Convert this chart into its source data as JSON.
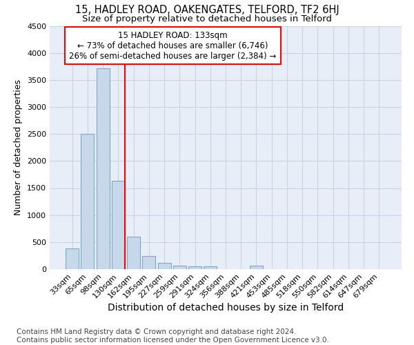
{
  "title": "15, HADLEY ROAD, OAKENGATES, TELFORD, TF2 6HJ",
  "subtitle": "Size of property relative to detached houses in Telford",
  "xlabel": "Distribution of detached houses by size in Telford",
  "ylabel": "Number of detached properties",
  "categories": [
    "33sqm",
    "65sqm",
    "98sqm",
    "130sqm",
    "162sqm",
    "195sqm",
    "227sqm",
    "259sqm",
    "291sqm",
    "324sqm",
    "356sqm",
    "388sqm",
    "421sqm",
    "453sqm",
    "485sqm",
    "518sqm",
    "550sqm",
    "582sqm",
    "614sqm",
    "647sqm",
    "679sqm"
  ],
  "values": [
    380,
    2500,
    3720,
    1630,
    600,
    240,
    110,
    70,
    55,
    55,
    0,
    0,
    60,
    0,
    0,
    0,
    0,
    0,
    0,
    0,
    0
  ],
  "bar_color": "#c8d8eb",
  "bar_edge_color": "#7aaabf",
  "red_line_index": 3,
  "red_line_label": "15 HADLEY ROAD: 133sqm",
  "annotation_line1": "← 73% of detached houses are smaller (6,746)",
  "annotation_line2": "26% of semi-detached houses are larger (2,384) →",
  "ylim": [
    0,
    4500
  ],
  "yticks": [
    0,
    500,
    1000,
    1500,
    2000,
    2500,
    3000,
    3500,
    4000,
    4500
  ],
  "grid_color": "#c8d4e4",
  "background_color": "#e8eef8",
  "title_fontsize": 10.5,
  "subtitle_fontsize": 9.5,
  "xlabel_fontsize": 10,
  "ylabel_fontsize": 9,
  "tick_fontsize": 8,
  "annot_fontsize": 8.5,
  "footnote": "Contains HM Land Registry data © Crown copyright and database right 2024.\nContains public sector information licensed under the Open Government Licence v3.0.",
  "footnote_fontsize": 7.5
}
